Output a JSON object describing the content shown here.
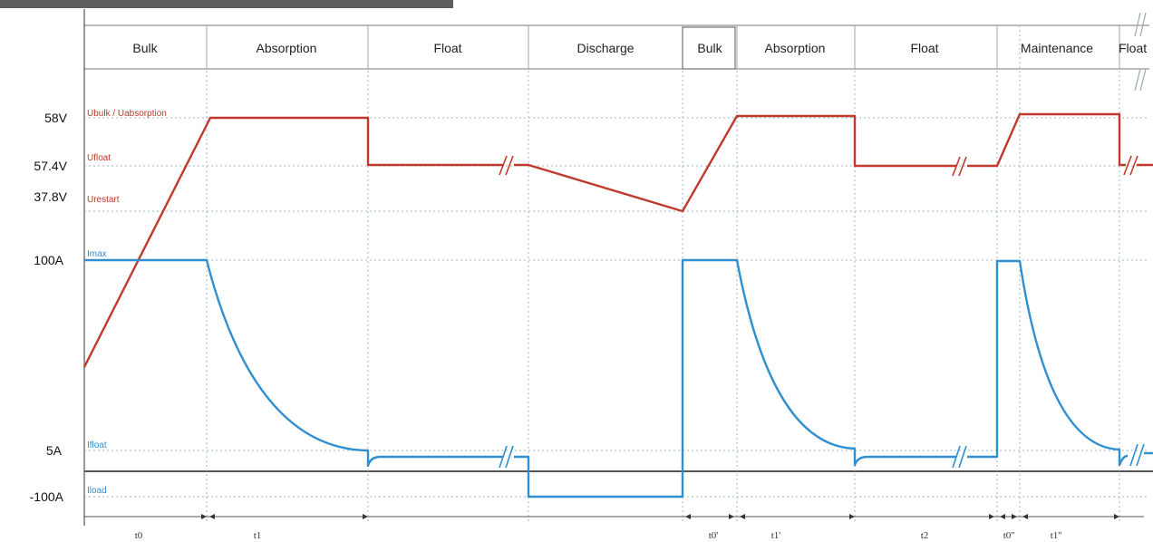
{
  "phases": [
    {
      "label": "Bulk"
    },
    {
      "label": "Absorption"
    },
    {
      "label": "Float"
    },
    {
      "label": "Discharge"
    },
    {
      "label": "Bulk"
    },
    {
      "label": "Absorption"
    },
    {
      "label": "Float"
    },
    {
      "label": "Maintenance"
    },
    {
      "label": "Float"
    }
  ],
  "y_labels": {
    "v58": "58V",
    "v574": "57.4V",
    "v378": "37.8V",
    "a100": "100A",
    "a5": "5A",
    "an100": "-100A"
  },
  "voltage_annotations": {
    "bulk_absorption": "Ubulk / Uabsorption",
    "float": "Ufloat",
    "restart": "Urestart"
  },
  "current_annotations": {
    "max": "Imax",
    "float": "Ifloat",
    "load": "Iload"
  },
  "time_labels": [
    "t0",
    "t1",
    "t0'",
    "t1'",
    "t2",
    "t0''",
    "t1''"
  ],
  "colors": {
    "voltage": "#c0392b",
    "current": "#2f8fd0",
    "grid": "#9cb8c2",
    "frame": "#7a7a7a"
  }
}
